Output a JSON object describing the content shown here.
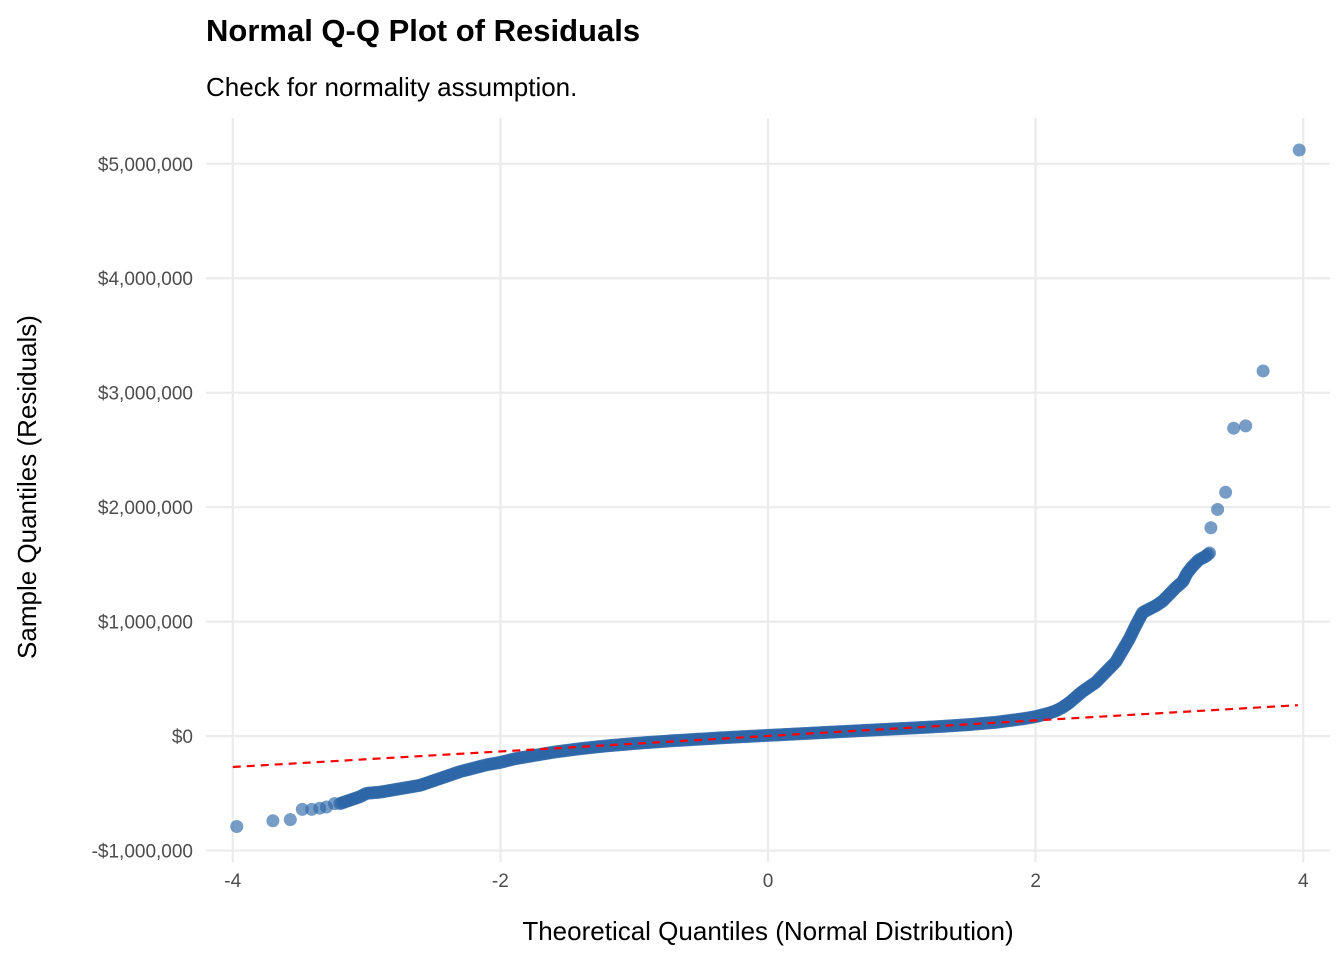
{
  "chart_data": {
    "type": "scatter",
    "title": "Normal Q-Q Plot of Residuals",
    "subtitle": "Check for normality assumption.",
    "xlabel": "Theoretical Quantiles (Normal Distribution)",
    "ylabel": "Sample Quantiles (Residuals)",
    "xlim": [
      -4.2,
      4.2
    ],
    "ylim": [
      -1100000,
      5400000
    ],
    "x_ticks": [
      -4,
      -2,
      0,
      2,
      4
    ],
    "x_tick_labels": [
      "-4",
      "-2",
      "0",
      "2",
      "4"
    ],
    "y_ticks": [
      -1000000,
      0,
      1000000,
      2000000,
      3000000,
      4000000,
      5000000
    ],
    "y_tick_labels": [
      "-$1,000,000",
      "$0",
      "$1,000,000",
      "$2,000,000",
      "$3,000,000",
      "$4,000,000",
      "$5,000,000"
    ],
    "grid": true,
    "legend": "none",
    "point_color": "#2E67A8",
    "reference_line": {
      "style": "dashed",
      "color": "#FF0000",
      "x": [
        -4,
        3.96
      ],
      "y": [
        -270000,
        270000
      ]
    },
    "series": [
      {
        "points": [
          [
            -3.97,
            -790000
          ],
          [
            -3.7,
            -740000
          ],
          [
            -3.57,
            -730000
          ],
          [
            -3.48,
            -640000
          ],
          [
            -3.41,
            -640000
          ],
          [
            -3.35,
            -630000
          ],
          [
            -3.3,
            -620000
          ],
          [
            -3.24,
            -590000
          ],
          [
            -3.2,
            -590000
          ],
          [
            -3.15,
            -570000
          ],
          [
            -3.1,
            -550000
          ],
          [
            -3.05,
            -530000
          ],
          [
            -3.0,
            -500000
          ],
          [
            -2.9,
            -490000
          ],
          [
            -2.8,
            -470000
          ],
          [
            -2.7,
            -450000
          ],
          [
            -2.6,
            -430000
          ],
          [
            -2.5,
            -390000
          ],
          [
            -2.4,
            -350000
          ],
          [
            -2.3,
            -310000
          ],
          [
            -2.2,
            -280000
          ],
          [
            -2.1,
            -250000
          ],
          [
            -2.0,
            -230000
          ],
          [
            -1.9,
            -200000
          ],
          [
            -1.8,
            -180000
          ],
          [
            -1.7,
            -160000
          ],
          [
            -1.6,
            -140000
          ],
          [
            -1.5,
            -125000
          ],
          [
            -1.4,
            -110000
          ],
          [
            -1.3,
            -97000
          ],
          [
            -1.2,
            -85000
          ],
          [
            -1.1,
            -75000
          ],
          [
            -1.0,
            -65000
          ],
          [
            -0.9,
            -56000
          ],
          [
            -0.8,
            -48000
          ],
          [
            -0.7,
            -40000
          ],
          [
            -0.6,
            -33000
          ],
          [
            -0.5,
            -26000
          ],
          [
            -0.4,
            -19000
          ],
          [
            -0.3,
            -12000
          ],
          [
            -0.2,
            -6000
          ],
          [
            -0.1,
            0
          ],
          [
            0.0,
            6000
          ],
          [
            0.1,
            12000
          ],
          [
            0.2,
            18000
          ],
          [
            0.3,
            24000
          ],
          [
            0.4,
            30000
          ],
          [
            0.5,
            36000
          ],
          [
            0.6,
            42000
          ],
          [
            0.7,
            48000
          ],
          [
            0.8,
            54000
          ],
          [
            0.9,
            60000
          ],
          [
            1.0,
            66000
          ],
          [
            1.1,
            72000
          ],
          [
            1.2,
            78000
          ],
          [
            1.3,
            85000
          ],
          [
            1.4,
            92000
          ],
          [
            1.5,
            100000
          ],
          [
            1.6,
            110000
          ],
          [
            1.7,
            120000
          ],
          [
            1.8,
            135000
          ],
          [
            1.9,
            150000
          ],
          [
            2.0,
            170000
          ],
          [
            2.05,
            185000
          ],
          [
            2.1,
            200000
          ],
          [
            2.15,
            220000
          ],
          [
            2.2,
            250000
          ],
          [
            2.25,
            290000
          ],
          [
            2.3,
            340000
          ],
          [
            2.35,
            390000
          ],
          [
            2.4,
            430000
          ],
          [
            2.45,
            470000
          ],
          [
            2.5,
            530000
          ],
          [
            2.55,
            590000
          ],
          [
            2.6,
            650000
          ],
          [
            2.65,
            750000
          ],
          [
            2.7,
            850000
          ],
          [
            2.75,
            970000
          ],
          [
            2.8,
            1080000
          ],
          [
            2.85,
            1110000
          ],
          [
            2.9,
            1140000
          ],
          [
            2.95,
            1180000
          ],
          [
            3.0,
            1240000
          ],
          [
            3.05,
            1300000
          ],
          [
            3.1,
            1350000
          ],
          [
            3.13,
            1420000
          ],
          [
            3.17,
            1480000
          ],
          [
            3.22,
            1540000
          ],
          [
            3.27,
            1570000
          ],
          [
            3.3,
            1600000
          ],
          [
            3.31,
            1820000
          ],
          [
            3.36,
            1980000
          ],
          [
            3.42,
            2130000
          ],
          [
            3.48,
            2690000
          ],
          [
            3.57,
            2710000
          ],
          [
            3.7,
            3190000
          ],
          [
            3.97,
            5120000
          ]
        ]
      }
    ]
  }
}
